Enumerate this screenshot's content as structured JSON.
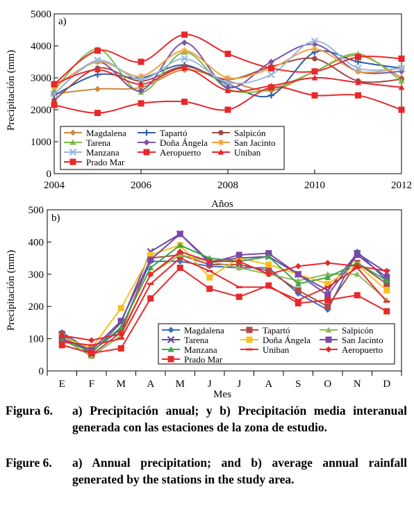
{
  "chart_data": [
    {
      "type": "line",
      "panel_label": "a)",
      "xlabel": "Años",
      "ylabel": "Precipitación (mm)",
      "xlim": [
        2004,
        2012
      ],
      "ylim": [
        0,
        5000
      ],
      "x_ticks": [
        "2004",
        "2006",
        "2008",
        "2010",
        "2012"
      ],
      "y_ticks": [
        "0",
        "1000",
        "2000",
        "3000",
        "4000",
        "5000"
      ],
      "x": [
        2004,
        2005,
        2006,
        2007,
        2008,
        2009,
        2010,
        2011,
        2012
      ],
      "grid": false,
      "legend_position": "bottom",
      "series": [
        {
          "name": "Magdalena",
          "color": "#d08a3a",
          "marker": "diamond",
          "values": [
            2500,
            2650,
            2700,
            3250,
            2900,
            2600,
            3200,
            3700,
            3000
          ]
        },
        {
          "name": "Tapartó",
          "color": "#2e5ea8",
          "marker": "plus",
          "values": [
            2450,
            3100,
            3000,
            3400,
            2800,
            2450,
            3800,
            3500,
            3300
          ]
        },
        {
          "name": "Salpicón",
          "color": "#a04a44",
          "marker": "circle",
          "values": [
            2300,
            3300,
            2900,
            3350,
            2950,
            3350,
            3600,
            2900,
            2950
          ]
        },
        {
          "name": "Tarena",
          "color": "#7dbb4a",
          "marker": "triangle",
          "values": [
            2600,
            3900,
            2550,
            3800,
            2650,
            2650,
            3200,
            3750,
            2900
          ]
        },
        {
          "name": "Doña Ángela",
          "color": "#7a56a8",
          "marker": "diamond",
          "values": [
            2500,
            3500,
            2600,
            4100,
            2700,
            3500,
            4050,
            3200,
            3200
          ]
        },
        {
          "name": "San Jacinto",
          "color": "#f0a040",
          "marker": "star",
          "values": [
            2700,
            3500,
            3050,
            3850,
            3000,
            3300,
            3900,
            3200,
            3300
          ]
        },
        {
          "name": "Manzana",
          "color": "#99b8e0",
          "marker": "x",
          "values": [
            2500,
            3550,
            2950,
            3600,
            2850,
            3100,
            4150,
            3300,
            3300
          ]
        },
        {
          "name": "Aeropuerto",
          "color": "#e8282a",
          "marker": "square",
          "values": [
            2800,
            3850,
            3500,
            4350,
            3750,
            3300,
            3200,
            3650,
            3600
          ]
        },
        {
          "name": "Uniban",
          "color": "#e8282a",
          "marker": "triangle",
          "values": [
            2800,
            3250,
            2800,
            3300,
            2600,
            2750,
            3000,
            2850,
            2700
          ]
        },
        {
          "name": "Prado Mar",
          "color": "#e8282a",
          "marker": "square",
          "values": [
            2150,
            1900,
            2200,
            2250,
            2000,
            2700,
            2450,
            2450,
            2000
          ]
        }
      ]
    },
    {
      "type": "line",
      "panel_label": "b)",
      "xlabel": "Mes",
      "ylabel": "Precipitación (mm)",
      "ylim": [
        0,
        500
      ],
      "categories": [
        "E",
        "F",
        "M",
        "A",
        "M",
        "J",
        "J",
        "A",
        "S",
        "O",
        "N",
        "D"
      ],
      "y_ticks": [
        "0",
        "100",
        "200",
        "300",
        "400",
        "500"
      ],
      "grid": false,
      "legend_position": "top-right",
      "series": [
        {
          "name": "Magdalena",
          "color": "#3a6fc0",
          "marker": "diamond",
          "values": [
            120,
            60,
            130,
            340,
            340,
            325,
            320,
            320,
            240,
            190,
            370,
            280
          ]
        },
        {
          "name": "Tapartó",
          "color": "#b04a48",
          "marker": "square",
          "values": [
            115,
            50,
            120,
            350,
            360,
            330,
            330,
            310,
            250,
            200,
            335,
            270
          ]
        },
        {
          "name": "Salpicón",
          "color": "#92b858",
          "marker": "triangle",
          "values": [
            100,
            45,
            110,
            300,
            360,
            340,
            320,
            300,
            280,
            300,
            300,
            220
          ]
        },
        {
          "name": "Tarena",
          "color": "#6a4a9a",
          "marker": "x",
          "values": [
            110,
            55,
            150,
            370,
            425,
            340,
            350,
            355,
            300,
            250,
            365,
            305
          ]
        },
        {
          "name": "Doña Ángela",
          "color": "#f6c020",
          "marker": "square",
          "values": [
            105,
            70,
            195,
            360,
            390,
            290,
            350,
            330,
            300,
            270,
            330,
            250
          ]
        },
        {
          "name": "San Jacinto",
          "color": "#7a48a8",
          "marker": "square",
          "values": [
            100,
            65,
            155,
            345,
            425,
            335,
            360,
            365,
            300,
            235,
            360,
            290
          ]
        },
        {
          "name": "Manzana",
          "color": "#3aa848",
          "marker": "triangle",
          "values": [
            95,
            60,
            135,
            320,
            390,
            350,
            340,
            355,
            270,
            290,
            335,
            280
          ]
        },
        {
          "name": "Uniban",
          "color": "#e8282a",
          "marker": "dash",
          "values": [
            90,
            80,
            100,
            270,
            350,
            310,
            260,
            260,
            220,
            260,
            320,
            215
          ]
        },
        {
          "name": "Aeropuerto",
          "color": "#e8282a",
          "marker": "diamond",
          "values": [
            110,
            95,
            115,
            300,
            370,
            340,
            340,
            300,
            325,
            335,
            325,
            310
          ]
        },
        {
          "name": "Prado Mar",
          "color": "#e8282a",
          "marker": "square",
          "values": [
            80,
            55,
            70,
            225,
            320,
            255,
            230,
            265,
            210,
            220,
            235,
            185
          ]
        }
      ]
    }
  ],
  "caption": {
    "es_label": "Figura 6.",
    "es_text": "a) Precipitación anual; y b) Precipitación media interanual generada con las estaciones de la zona de estudio.",
    "en_label": "Figure 6.",
    "en_text": "a) Annual precipitation; and b) average annual rainfall generated by the stations in the study area."
  }
}
